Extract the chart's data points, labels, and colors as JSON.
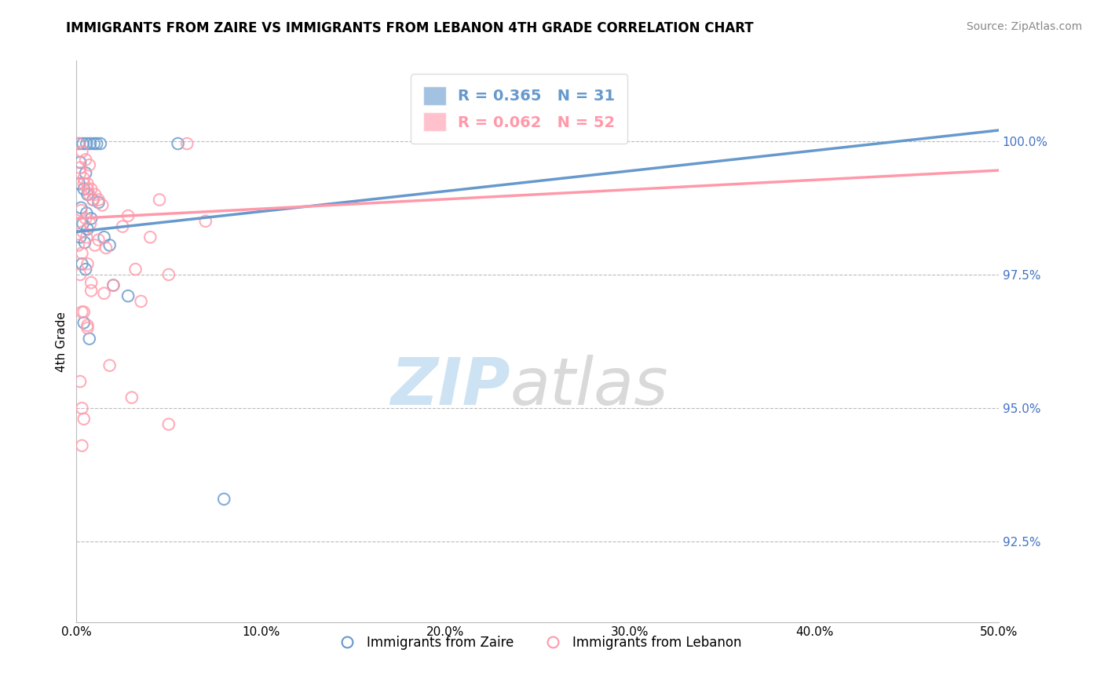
{
  "title": "IMMIGRANTS FROM ZAIRE VS IMMIGRANTS FROM LEBANON 4TH GRADE CORRELATION CHART",
  "source": "Source: ZipAtlas.com",
  "xlabel_vals": [
    0,
    10,
    20,
    30,
    40,
    50
  ],
  "ylabel": "4th Grade",
  "ylabel_vals": [
    92.5,
    95.0,
    97.5,
    100.0
  ],
  "ymin": 91.0,
  "ymax": 101.5,
  "xmin": 0,
  "xmax": 50,
  "zaire_color": "#6699CC",
  "lebanon_color": "#FF99AA",
  "zaire_R": 0.365,
  "zaire_N": 31,
  "lebanon_R": 0.062,
  "lebanon_N": 52,
  "legend_label_zaire": "Immigrants from Zaire",
  "legend_label_lebanon": "Immigrants from Lebanon",
  "zaire_line": [
    [
      0,
      98.3
    ],
    [
      50,
      100.2
    ]
  ],
  "lebanon_line": [
    [
      0,
      98.55
    ],
    [
      50,
      99.45
    ]
  ],
  "zaire_points": [
    [
      0.15,
      99.95
    ],
    [
      0.35,
      99.95
    ],
    [
      0.55,
      99.95
    ],
    [
      0.75,
      99.95
    ],
    [
      0.95,
      99.95
    ],
    [
      1.1,
      99.95
    ],
    [
      1.3,
      99.95
    ],
    [
      0.2,
      99.6
    ],
    [
      0.5,
      99.4
    ],
    [
      0.15,
      99.2
    ],
    [
      0.4,
      99.1
    ],
    [
      0.6,
      99.0
    ],
    [
      0.9,
      98.9
    ],
    [
      1.2,
      98.85
    ],
    [
      0.25,
      98.75
    ],
    [
      0.55,
      98.65
    ],
    [
      0.8,
      98.55
    ],
    [
      0.35,
      98.45
    ],
    [
      0.6,
      98.35
    ],
    [
      0.2,
      98.2
    ],
    [
      0.45,
      98.1
    ],
    [
      1.5,
      98.2
    ],
    [
      1.8,
      98.05
    ],
    [
      0.3,
      97.7
    ],
    [
      0.5,
      97.6
    ],
    [
      2.0,
      97.3
    ],
    [
      2.8,
      97.1
    ],
    [
      0.4,
      96.6
    ],
    [
      0.7,
      96.3
    ],
    [
      5.5,
      99.95
    ],
    [
      8.0,
      93.3
    ]
  ],
  "lebanon_points": [
    [
      0.1,
      99.95
    ],
    [
      0.3,
      99.8
    ],
    [
      0.5,
      99.65
    ],
    [
      0.7,
      99.55
    ],
    [
      0.2,
      99.4
    ],
    [
      0.4,
      99.3
    ],
    [
      0.6,
      99.2
    ],
    [
      0.8,
      99.1
    ],
    [
      1.0,
      99.0
    ],
    [
      1.2,
      98.9
    ],
    [
      1.4,
      98.8
    ],
    [
      0.25,
      98.7
    ],
    [
      0.5,
      98.55
    ],
    [
      0.75,
      98.45
    ],
    [
      0.35,
      98.3
    ],
    [
      0.55,
      98.2
    ],
    [
      1.6,
      98.0
    ],
    [
      2.5,
      98.4
    ],
    [
      4.0,
      98.2
    ],
    [
      0.3,
      97.9
    ],
    [
      0.6,
      97.7
    ],
    [
      5.0,
      97.5
    ],
    [
      2.0,
      97.3
    ],
    [
      3.5,
      97.0
    ],
    [
      0.4,
      96.8
    ],
    [
      1.8,
      95.8
    ],
    [
      0.2,
      95.5
    ],
    [
      3.0,
      95.2
    ],
    [
      2.8,
      98.6
    ],
    [
      4.5,
      98.9
    ],
    [
      0.2,
      99.5
    ],
    [
      6.0,
      99.95
    ],
    [
      0.8,
      97.2
    ],
    [
      3.2,
      97.6
    ],
    [
      0.6,
      96.5
    ],
    [
      0.4,
      94.8
    ],
    [
      7.0,
      98.5
    ],
    [
      0.3,
      94.3
    ],
    [
      1.0,
      98.05
    ],
    [
      1.2,
      98.15
    ],
    [
      0.7,
      99.0
    ],
    [
      0.9,
      98.9
    ],
    [
      0.4,
      99.2
    ],
    [
      0.6,
      99.1
    ],
    [
      0.2,
      97.5
    ],
    [
      1.5,
      97.15
    ],
    [
      0.3,
      96.8
    ],
    [
      0.1,
      98.05
    ],
    [
      0.8,
      97.35
    ],
    [
      0.6,
      96.55
    ],
    [
      5.0,
      94.7
    ],
    [
      0.3,
      95.0
    ]
  ]
}
